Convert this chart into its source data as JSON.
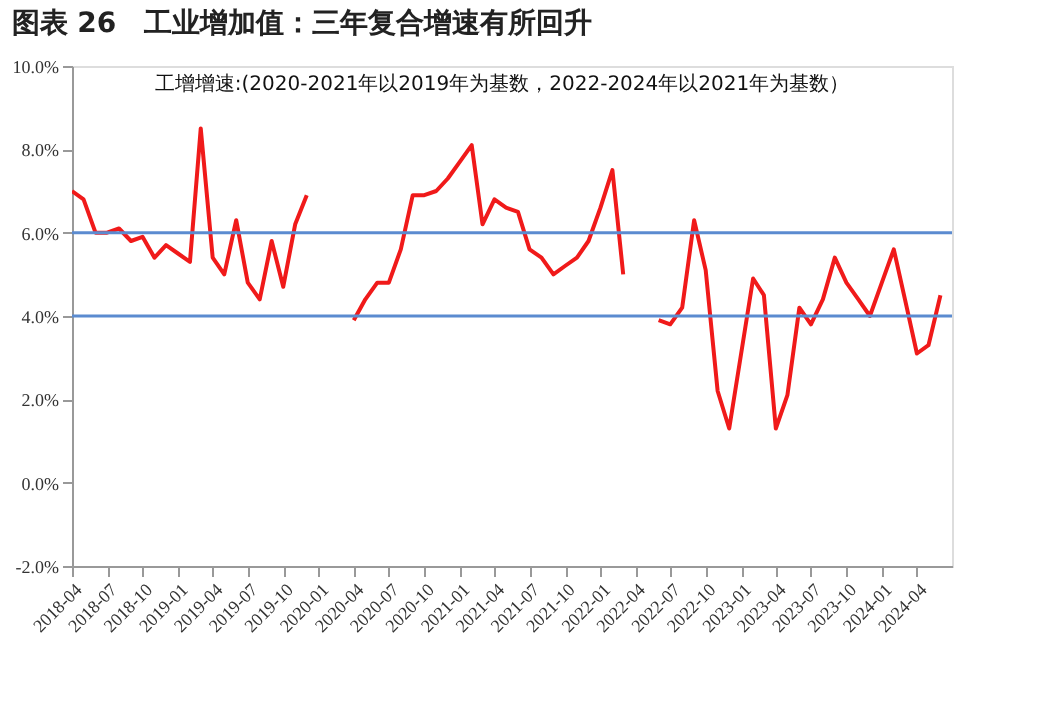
{
  "chart_data": {
    "type": "line",
    "title": "图表 26　工业增加值：三年复合增速有所回升",
    "annotations": [
      "工增增速:(2020-2021年以2019年为基数，2022-2024年以2021年为基数）"
    ],
    "x": [
      "2018-04",
      "2018-05",
      "2018-06",
      "2018-07",
      "2018-08",
      "2018-09",
      "2018-10",
      "2018-11",
      "2018-12",
      "2019-01",
      "2019-02",
      "2019-03",
      "2019-04",
      "2019-05",
      "2019-06",
      "2019-07",
      "2019-08",
      "2019-09",
      "2019-10",
      "2019-11",
      "2019-12",
      "2020-01",
      "2020-02",
      "2020-03",
      "2020-04",
      "2020-05",
      "2020-06",
      "2020-07",
      "2020-08",
      "2020-09",
      "2020-10",
      "2020-11",
      "2020-12",
      "2021-01",
      "2021-02",
      "2021-03",
      "2021-04",
      "2021-05",
      "2021-06",
      "2021-07",
      "2021-08",
      "2021-09",
      "2021-10",
      "2021-11",
      "2021-12",
      "2022-01",
      "2022-02",
      "2022-03",
      "2022-04",
      "2022-05",
      "2022-06",
      "2022-07",
      "2022-08",
      "2022-09",
      "2022-10",
      "2022-11",
      "2022-12",
      "2023-01",
      "2023-02",
      "2023-03",
      "2023-04",
      "2023-05",
      "2023-06",
      "2023-07",
      "2023-08",
      "2023-09",
      "2023-10",
      "2023-11",
      "2023-12",
      "2024-01",
      "2024-02",
      "2024-03",
      "2024-04",
      "2024-05",
      "2024-06"
    ],
    "series": [
      {
        "color": "#f01a1a",
        "values": [
          7.0,
          6.8,
          6.0,
          6.0,
          6.1,
          5.8,
          5.9,
          5.4,
          5.7,
          5.5,
          5.3,
          8.5,
          5.4,
          5.0,
          6.3,
          4.8,
          4.4,
          5.8,
          4.7,
          6.2,
          6.9,
          null,
          null,
          null,
          3.9,
          4.4,
          4.8,
          4.8,
          5.6,
          6.9,
          6.9,
          7.0,
          7.3,
          7.7,
          8.1,
          6.2,
          6.8,
          6.6,
          6.5,
          5.6,
          5.4,
          5.0,
          5.2,
          5.4,
          5.8,
          6.6,
          7.5,
          5.0,
          null,
          null,
          3.9,
          3.8,
          4.2,
          6.3,
          5.1,
          2.2,
          1.3,
          3.1,
          4.9,
          4.5,
          1.3,
          2.1,
          4.2,
          3.8,
          4.4,
          5.4,
          4.8,
          4.4,
          4.0,
          4.8,
          5.6,
          4.4,
          3.1,
          3.3,
          4.5
        ]
      }
    ],
    "xlim": [
      "2018-04",
      "2024-07"
    ],
    "xticks": [
      "2018-04",
      "2018-07",
      "2018-10",
      "2019-01",
      "2019-04",
      "2019-07",
      "2019-10",
      "2020-01",
      "2020-04",
      "2020-07",
      "2020-10",
      "2021-01",
      "2021-04",
      "2021-07",
      "2021-10",
      "2022-01",
      "2022-04",
      "2022-07",
      "2022-10",
      "2023-01",
      "2023-04",
      "2023-07",
      "2023-10",
      "2024-01",
      "2024-04"
    ],
    "ylim": [
      -2,
      10
    ],
    "yticks": [
      {
        "value": -2,
        "label": "-2.0%"
      },
      {
        "value": 0,
        "label": "0.0%"
      },
      {
        "value": 2,
        "label": "2.0%"
      },
      {
        "value": 4,
        "label": "4.0%"
      },
      {
        "value": 6,
        "label": "6.0%"
      },
      {
        "value": 8,
        "label": "8.0%"
      },
      {
        "value": 10,
        "label": "10.0%"
      }
    ],
    "ref_lines": [
      {
        "axis": "y",
        "value": 6,
        "color": "#5b8bd0"
      },
      {
        "axis": "y",
        "value": 4,
        "color": "#5b8bd0"
      }
    ],
    "grid": false,
    "line_style": "solid"
  }
}
